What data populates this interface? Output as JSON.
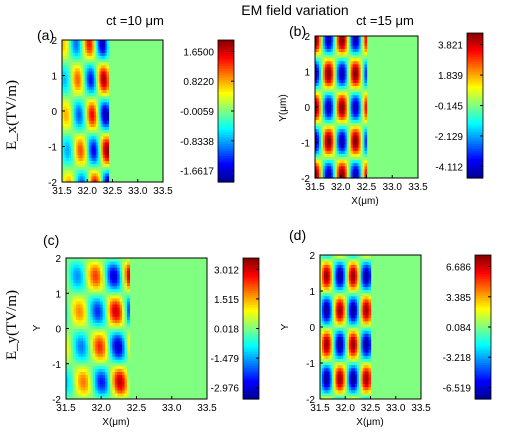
{
  "figure_title": "EM field variation",
  "row_labels": [
    "E_x(TV/m)",
    "E_y(TV/m)"
  ],
  "time_labels": [
    "ct =10 μm",
    "ct =15 μm"
  ],
  "colormap": [
    "#00008f",
    "#0000ff",
    "#0080ff",
    "#00ffff",
    "#80ff80",
    "#ffff00",
    "#ff8000",
    "#ff0000",
    "#800000"
  ],
  "background_color": "#80ff80",
  "chart_data": [
    {
      "type": "heatmap",
      "label": "(a)",
      "field": "Ex",
      "ct": "10 μm",
      "xlabel": "",
      "ylabel": "",
      "xticks": [
        "31.5",
        "32.0",
        "32.5",
        "33.0",
        "33.5"
      ],
      "yticks": [
        "2",
        "1",
        "0",
        "-1",
        "-2"
      ],
      "xlim": [
        31.5,
        33.5
      ],
      "ylim": [
        -2,
        2
      ],
      "colorbar_ticks": [
        "1.6500",
        "0.8220",
        "-0.0059",
        "-0.8338",
        "-1.6617"
      ],
      "vmin": -1.6617,
      "vmax": 1.65,
      "field_model": {
        "amplitude": 1.65,
        "x_start": 31.5,
        "x_end": 32.42,
        "kx": 12.0,
        "ky": 3.14,
        "px": 0.8,
        "py": 0.3,
        "tilt": 0.35,
        "envelope": "rising"
      }
    },
    {
      "type": "heatmap",
      "label": "(b)",
      "field": "Ex",
      "ct": "15 μm",
      "xlabel": "X(μm)",
      "ylabel": "Y(μm)",
      "xticks": [
        "31.5",
        "32.0",
        "32.5",
        "33.0",
        "33.5"
      ],
      "yticks": [
        "2",
        "1",
        "0",
        "-1",
        "-2"
      ],
      "xlim": [
        31.5,
        33.5
      ],
      "ylim": [
        -2,
        2
      ],
      "colorbar_ticks": [
        "3.821",
        "1.839",
        "-0.145",
        "-2.129",
        "-4.112"
      ],
      "vmin": -4.112,
      "vmax": 3.821,
      "field_model": {
        "amplitude": 3.9,
        "x_start": 31.5,
        "x_end": 32.5,
        "kx": 12.0,
        "ky": 3.3,
        "px": 1.57,
        "py": 0.0,
        "tilt": 0.0,
        "envelope": "flat"
      }
    },
    {
      "type": "heatmap",
      "label": "(c)",
      "field": "Ey",
      "ct": "10 μm",
      "xlabel": "X(μm)",
      "ylabel": "Y",
      "xticks": [
        "31.5",
        "32.0",
        "32.5",
        "33.0",
        "33.5"
      ],
      "yticks": [
        "2",
        "1",
        "0",
        "-1",
        "-2"
      ],
      "xlim": [
        31.5,
        33.5
      ],
      "ylim": [
        -2,
        2
      ],
      "colorbar_ticks": [
        "3.012",
        "1.515",
        "0.018",
        "-1.479",
        "-2.976"
      ],
      "vmin": -2.976,
      "vmax": 3.012,
      "field_model": {
        "amplitude": 3.0,
        "x_start": 31.5,
        "x_end": 32.4,
        "kx": 12.0,
        "ky": 3.14,
        "px": 2.4,
        "py": 1.57,
        "tilt": 0.35,
        "envelope": "rising"
      }
    },
    {
      "type": "heatmap",
      "label": "(d)",
      "field": "Ey",
      "ct": "15 μm",
      "xlabel": "X(μm)",
      "ylabel": "Y",
      "xticks": [
        "31.5",
        "32.0",
        "32.5",
        "33.0",
        "33.5"
      ],
      "yticks": [
        "2",
        "1",
        "0",
        "-1",
        "-2"
      ],
      "xlim": [
        31.5,
        33.5
      ],
      "ylim": [
        -2,
        2
      ],
      "colorbar_ticks": [
        "6.686",
        "3.385",
        "0.084",
        "-3.218",
        "-6.519"
      ],
      "vmin": -6.519,
      "vmax": 6.686,
      "field_model": {
        "amplitude": 6.5,
        "x_start": 31.5,
        "x_end": 32.5,
        "kx": 12.0,
        "ky": 3.3,
        "px": 0.0,
        "py": 1.57,
        "tilt": 0.0,
        "envelope": "flat"
      }
    }
  ]
}
